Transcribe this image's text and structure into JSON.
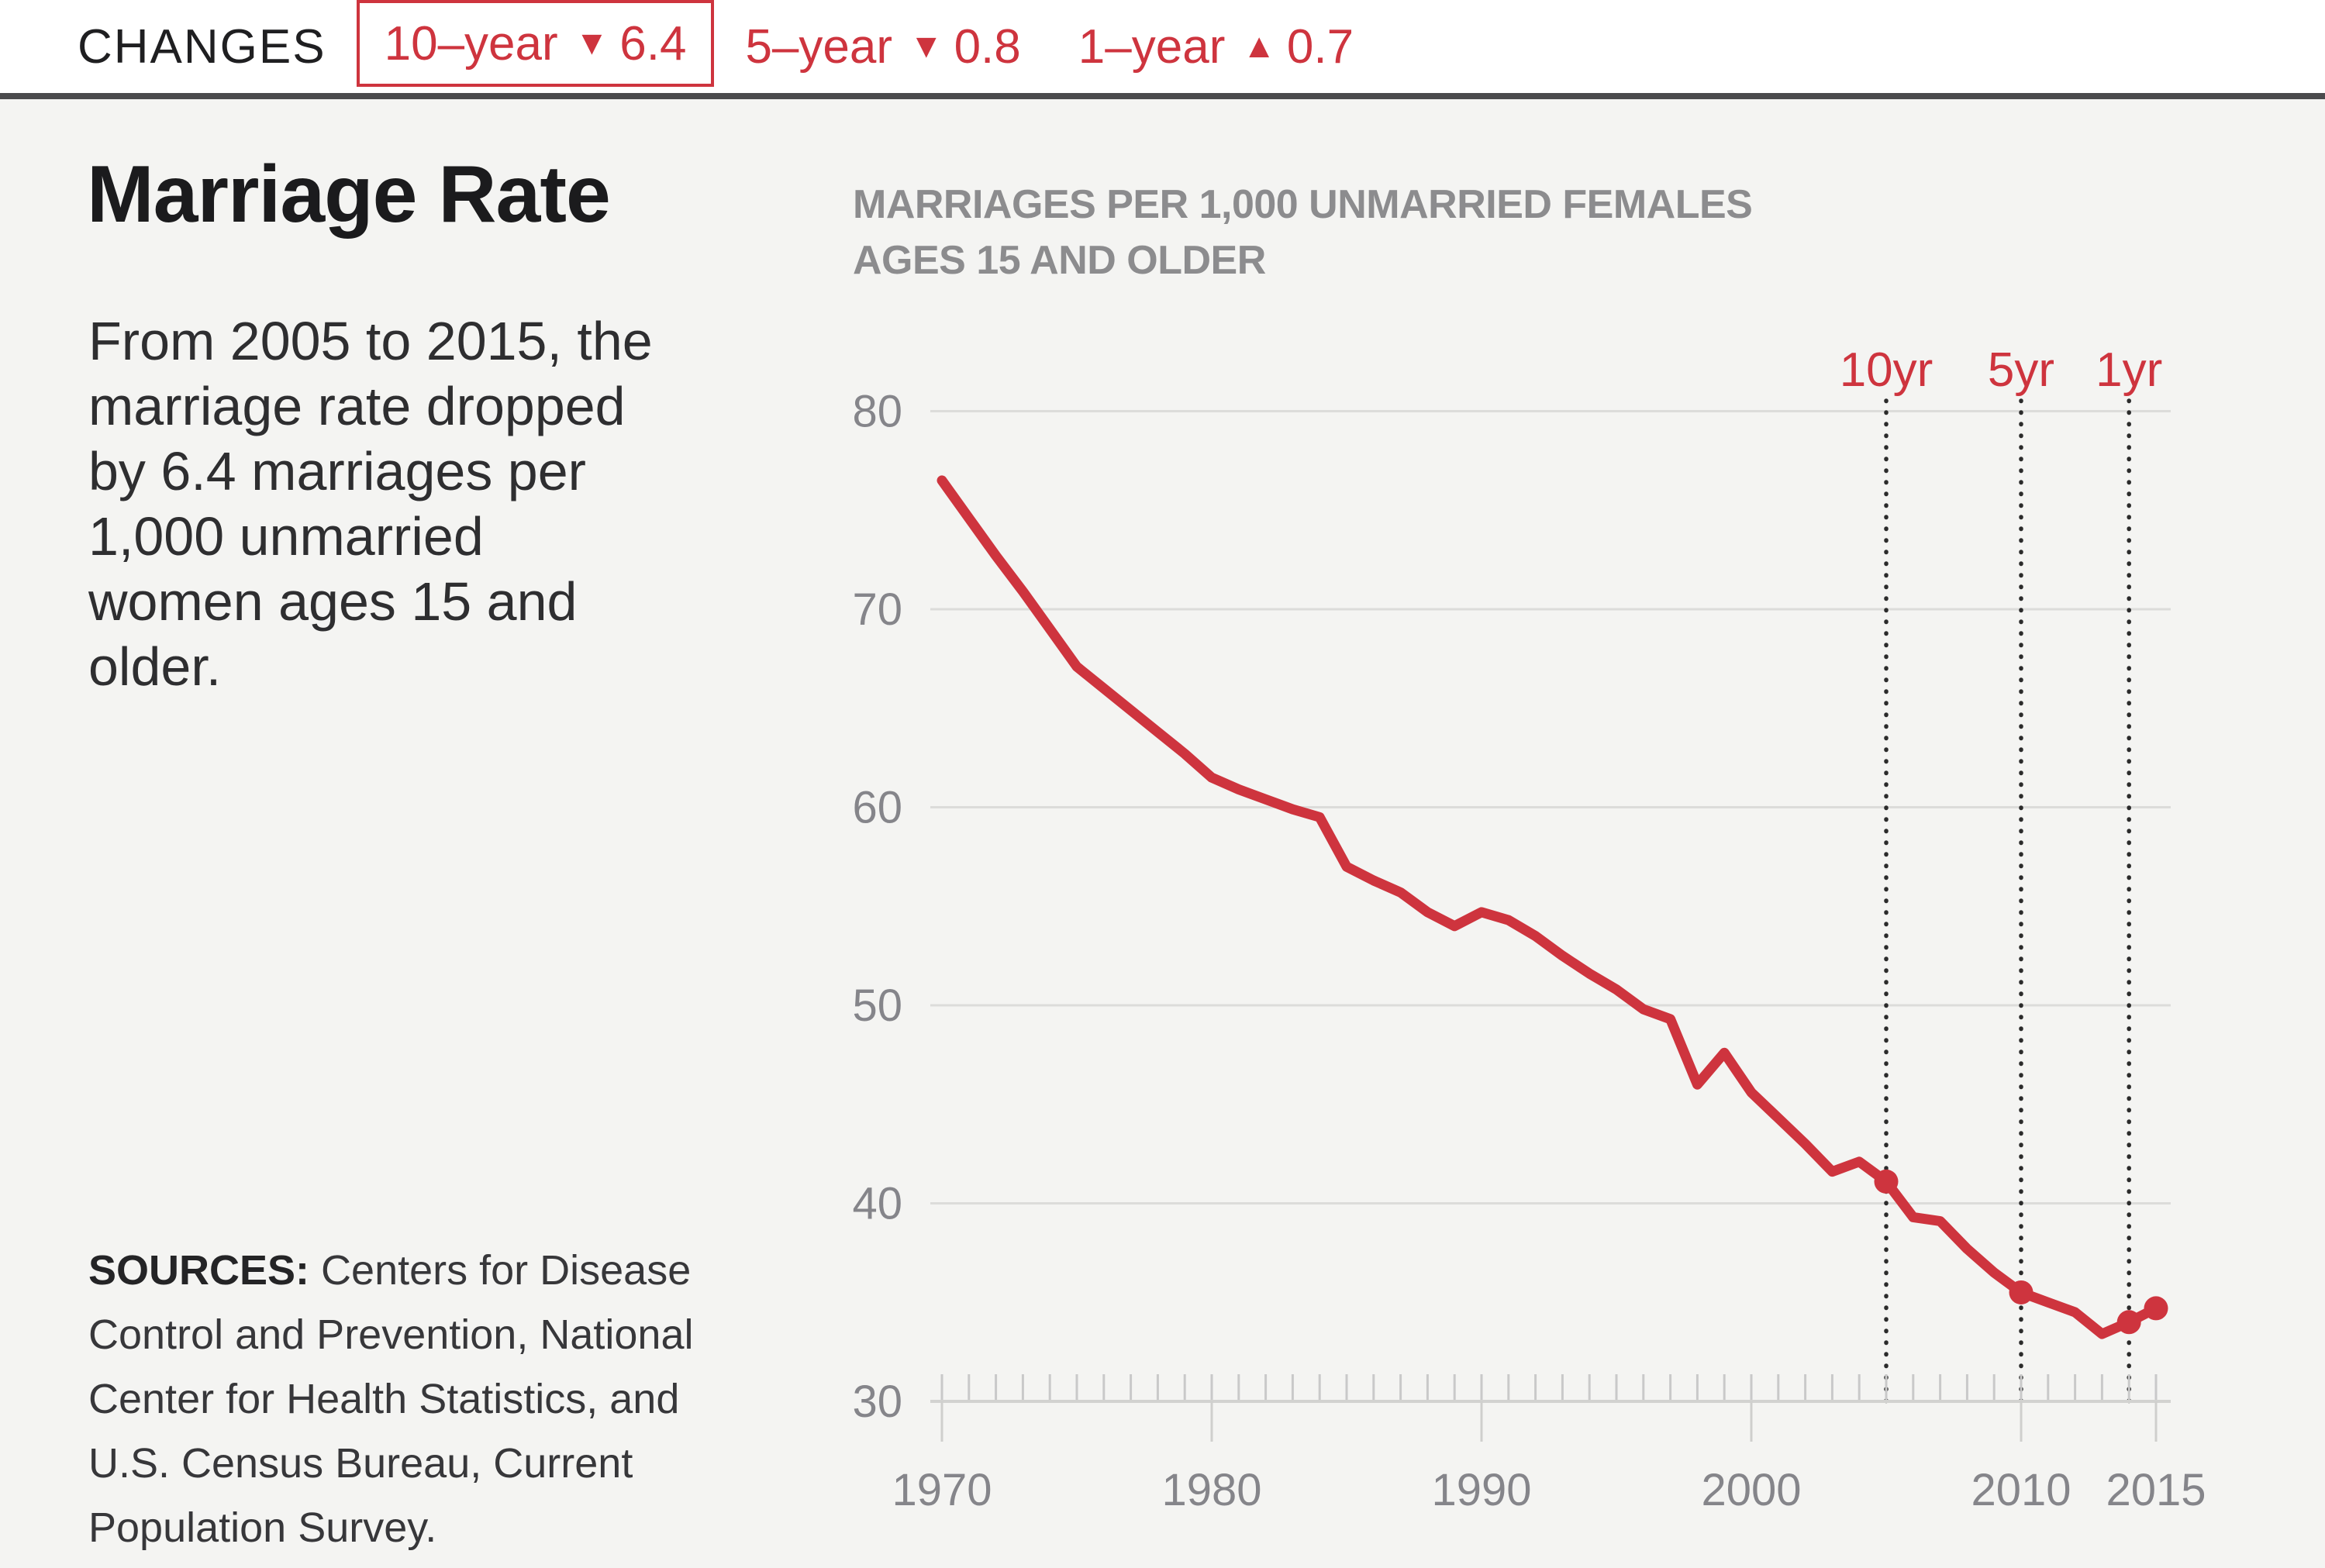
{
  "colors": {
    "accent_red": "#ce343e",
    "panel_background": "#f4f4f2",
    "topbar_rule": "#4b4b4d",
    "gridline": "#dcdcda",
    "axis_text": "#85858a",
    "subtitle_gray": "#8c8c8e",
    "dotted_line": "#2b2b2b"
  },
  "changes_bar": {
    "label": "CHANGES",
    "icons": {
      "down": "▼",
      "up": "▲"
    },
    "items": [
      {
        "period": "10–year",
        "direction": "down",
        "value": "6.4",
        "boxed": true
      },
      {
        "period": "5–year",
        "direction": "down",
        "value": "0.8",
        "boxed": false
      },
      {
        "period": "1–year",
        "direction": "up",
        "value": "0.7",
        "boxed": false
      }
    ]
  },
  "left_panel": {
    "title": "Marriage Rate",
    "description_lines": [
      "From 2005 to 2015, the",
      "marriage rate dropped",
      "by 6.4 marriages per",
      "1,000 unmarried",
      "women ages 15 and",
      "older."
    ],
    "sources_label": "SOURCES:",
    "sources_lines": [
      " Centers for Disease",
      "Control and Prevention, National",
      "Center for Health Statistics, and",
      "U.S. Census Bureau, Current",
      "Population Survey."
    ]
  },
  "chart": {
    "subtitle_lines": [
      "MARRIAGES PER 1,000 UNMARRIED FEMALES",
      "AGES 15 AND OLDER"
    ]
  },
  "chart_data": {
    "type": "line",
    "title": "MARRIAGES PER 1,000 UNMARRIED FEMALES AGES 15 AND OLDER",
    "xlabel": "",
    "ylabel": "",
    "x": [
      1970,
      1971,
      1972,
      1973,
      1974,
      1975,
      1976,
      1977,
      1978,
      1979,
      1980,
      1981,
      1982,
      1983,
      1984,
      1985,
      1986,
      1987,
      1988,
      1989,
      1990,
      1991,
      1992,
      1993,
      1994,
      1995,
      1996,
      1997,
      1998,
      1999,
      2000,
      2001,
      2002,
      2003,
      2004,
      2005,
      2006,
      2007,
      2008,
      2009,
      2010,
      2011,
      2012,
      2013,
      2014,
      2015
    ],
    "y": [
      76.5,
      74.6,
      72.7,
      70.9,
      69.0,
      67.1,
      66.0,
      64.9,
      63.8,
      62.7,
      61.5,
      60.9,
      60.4,
      59.9,
      59.5,
      57.0,
      56.3,
      55.7,
      54.7,
      54.0,
      54.7,
      54.3,
      53.5,
      52.5,
      51.6,
      50.8,
      49.8,
      49.3,
      46.0,
      47.6,
      45.6,
      44.3,
      43.0,
      41.6,
      42.1,
      41.1,
      39.3,
      39.1,
      37.7,
      36.5,
      35.5,
      35.0,
      34.5,
      33.4,
      34.0,
      34.7
    ],
    "ylim": [
      30,
      80
    ],
    "yticks": [
      80,
      70,
      60,
      50,
      40,
      30
    ],
    "xticks": [
      1970,
      1980,
      1990,
      2000,
      2010,
      2015
    ],
    "grid": true,
    "legend_position": "none",
    "markers": [
      {
        "label": "10yr",
        "year": 2005,
        "value": 41.1
      },
      {
        "label": "5yr",
        "year": 2010,
        "value": 35.5
      },
      {
        "label": "1yr",
        "year": 2014,
        "value": 34.0
      }
    ],
    "end_point": {
      "year": 2015,
      "value": 34.7
    },
    "line_color": "#ce343e"
  }
}
